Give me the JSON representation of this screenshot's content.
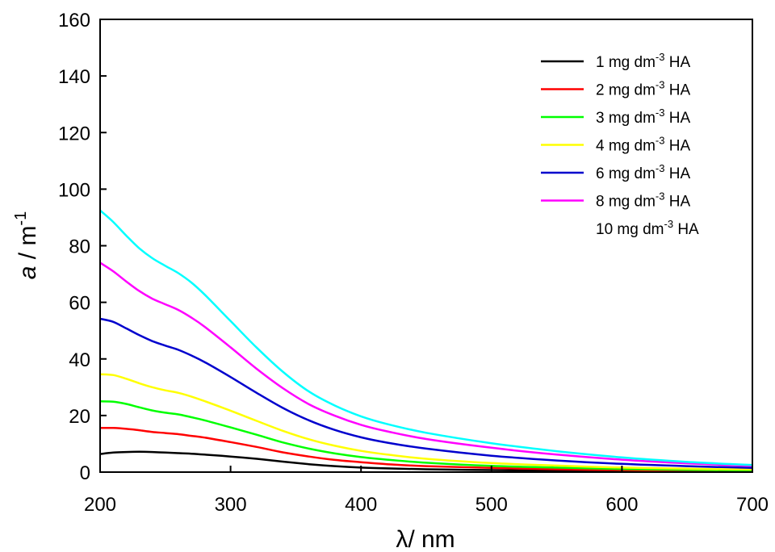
{
  "chart_data": {
    "type": "line",
    "xlabel": {
      "main": "λ",
      "rest": "/ nm"
    },
    "ylabel": {
      "main": "a",
      "rest": " / m",
      "sup": "-1"
    },
    "xlim": [
      200,
      700
    ],
    "ylim": [
      0,
      160
    ],
    "xticks": [
      200,
      300,
      400,
      500,
      600,
      700
    ],
    "yticks": [
      0,
      20,
      40,
      60,
      80,
      100,
      120,
      140,
      160
    ],
    "grid": false,
    "legend_position": "top-right",
    "x": [
      200,
      210,
      220,
      230,
      240,
      250,
      260,
      270,
      280,
      300,
      320,
      340,
      360,
      380,
      400,
      420,
      450,
      500,
      550,
      600,
      650,
      700
    ],
    "series": [
      {
        "name": "1 mg dm-3 HA",
        "label": {
          "pre": "1 mg dm",
          "sup": "-3",
          "post": " HA"
        },
        "color": "#000000",
        "values": [
          6.4,
          6.9,
          7.1,
          7.2,
          7.1,
          6.9,
          6.7,
          6.5,
          6.2,
          5.5,
          4.7,
          3.7,
          2.8,
          2.1,
          1.6,
          1.3,
          1.0,
          0.7,
          0.5,
          0.4,
          0.3,
          0.2
        ]
      },
      {
        "name": "2 mg dm-3 HA",
        "label": {
          "pre": "2 mg dm",
          "sup": "-3",
          "post": " HA"
        },
        "color": "#ff0000",
        "values": [
          15.6,
          15.6,
          15.3,
          14.8,
          14.2,
          13.8,
          13.4,
          12.8,
          12.2,
          10.6,
          8.9,
          7.0,
          5.5,
          4.3,
          3.5,
          2.8,
          2.1,
          1.5,
          1.0,
          0.7,
          0.5,
          0.4
        ]
      },
      {
        "name": "3 mg dm-3 HA",
        "label": {
          "pre": "3 mg dm",
          "sup": "-3",
          "post": " HA"
        },
        "color": "#00ff00",
        "values": [
          25.0,
          24.9,
          24.1,
          22.9,
          21.8,
          21.0,
          20.4,
          19.4,
          18.3,
          15.8,
          13.2,
          10.5,
          8.3,
          6.6,
          5.3,
          4.4,
          3.3,
          2.2,
          1.6,
          1.1,
          0.8,
          0.6
        ]
      },
      {
        "name": "4 mg dm-3 HA",
        "label": {
          "pre": "4 mg dm",
          "sup": "-3",
          "post": " HA"
        },
        "color": "#ffff00",
        "values": [
          34.6,
          34.3,
          33.0,
          31.4,
          30.0,
          28.9,
          28.0,
          26.7,
          25.1,
          21.7,
          18.1,
          14.6,
          11.6,
          9.3,
          7.5,
          6.2,
          4.7,
          3.2,
          2.3,
          1.6,
          1.2,
          0.9
        ]
      },
      {
        "name": "6 mg dm-3 HA",
        "label": {
          "pre": "6 mg dm",
          "sup": "-3",
          "post": " HA"
        },
        "color": "#0000cd",
        "values": [
          54.2,
          53.1,
          50.8,
          48.4,
          46.3,
          44.7,
          43.2,
          41.2,
          38.9,
          33.6,
          28.0,
          22.7,
          18.3,
          14.9,
          12.3,
          10.4,
          8.3,
          5.8,
          4.1,
          2.9,
          2.1,
          1.5
        ]
      },
      {
        "name": "8 mg dm-3 HA",
        "label": {
          "pre": "8 mg dm",
          "sup": "-3",
          "post": " HA"
        },
        "color": "#ff00ff",
        "values": [
          74.0,
          71.0,
          67.4,
          64.0,
          61.3,
          59.3,
          57.3,
          54.6,
          51.4,
          44.1,
          36.5,
          29.7,
          24.0,
          19.9,
          16.7,
          14.4,
          11.7,
          8.6,
          6.2,
          4.4,
          3.1,
          2.2
        ]
      },
      {
        "name": "10 mg dm-3 HA",
        "label": {
          "pre": "10 mg dm",
          "sup": "-3",
          "post": " HA"
        },
        "color": "#00ffff",
        "values": [
          92.5,
          88.4,
          83.6,
          79.1,
          75.6,
          72.9,
          70.3,
          67.0,
          62.8,
          53.4,
          44.0,
          35.5,
          28.5,
          23.5,
          19.7,
          17.0,
          13.9,
          10.2,
          7.4,
          5.2,
          3.6,
          2.5
        ]
      }
    ]
  }
}
